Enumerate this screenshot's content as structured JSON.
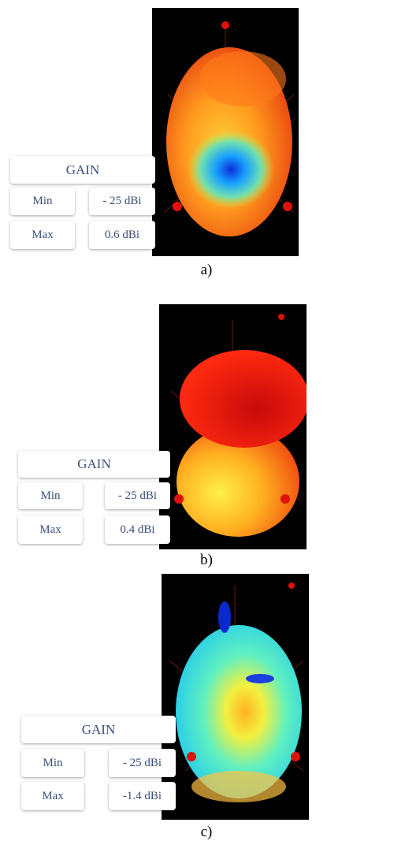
{
  "panels": [
    {
      "label": "a)",
      "table": {
        "header": "GAIN",
        "rows": [
          [
            "Min",
            "- 25 dBi"
          ],
          [
            "Max",
            "0.6 dBi"
          ]
        ]
      }
    },
    {
      "label": "b)",
      "table": {
        "header": "GAIN",
        "rows": [
          [
            "Min",
            "- 25 dBi"
          ],
          [
            "Max",
            "0.4 dBi"
          ]
        ]
      }
    },
    {
      "label": "c)",
      "table": {
        "header": "GAIN",
        "rows": [
          [
            "Min",
            "- 25 dBi"
          ],
          [
            "Max",
            "-1.4 dBi"
          ]
        ]
      }
    }
  ]
}
